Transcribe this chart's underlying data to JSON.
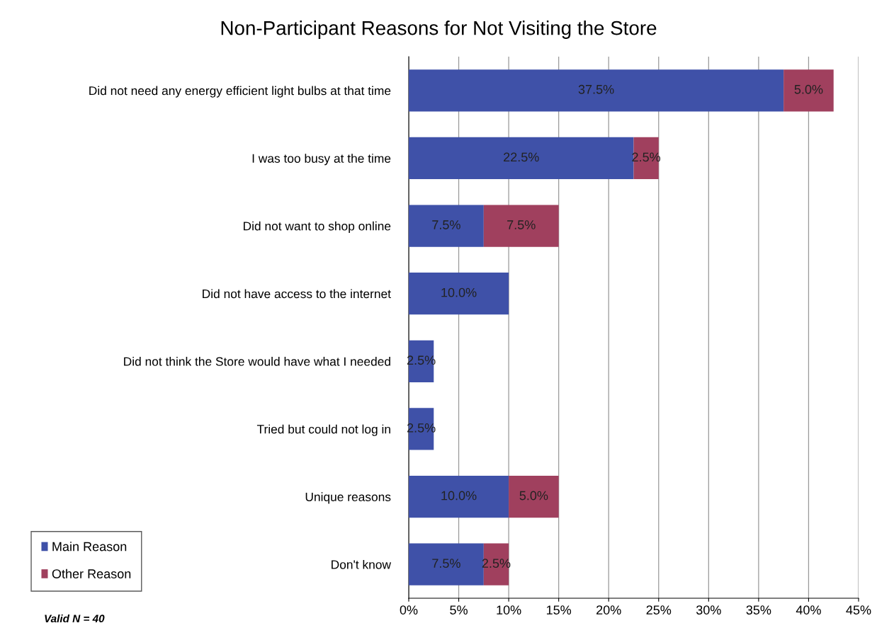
{
  "chart_data": {
    "type": "bar",
    "orientation": "horizontal",
    "stacked": true,
    "title": "Non-Participant Reasons for Not Visiting the Store",
    "categories": [
      "Did not need any energy efficient light bulbs at that time",
      "I was too busy at the time",
      "Did not want to shop online",
      "Did not have access to the internet",
      "Did not think the Store would have what I needed",
      "Tried but could not log in",
      "Unique reasons",
      "Don't know"
    ],
    "series": [
      {
        "name": "Main Reason",
        "color": "#3f51a8",
        "values": [
          37.5,
          22.5,
          7.5,
          10.0,
          2.5,
          2.5,
          10.0,
          7.5
        ],
        "value_labels": [
          "37.5%",
          "22.5%",
          "7.5%",
          "10.0%",
          "2.5%",
          "2.5%",
          "10.0%",
          "7.5%"
        ]
      },
      {
        "name": "Other Reason",
        "color": "#a0405e",
        "values": [
          5.0,
          2.5,
          7.5,
          null,
          null,
          null,
          5.0,
          2.5
        ],
        "value_labels": [
          "5.0%",
          "2.5%",
          "7.5%",
          null,
          null,
          null,
          "5.0%",
          "2.5%"
        ]
      }
    ],
    "xlim": [
      0,
      45
    ],
    "xticks": [
      {
        "value": 0,
        "label": "0%"
      },
      {
        "value": 5,
        "label": "5%"
      },
      {
        "value": 10,
        "label": "10%"
      },
      {
        "value": 15,
        "label": "15%"
      },
      {
        "value": 20,
        "label": "20%"
      },
      {
        "value": 25,
        "label": "25%"
      },
      {
        "value": 30,
        "label": "30%"
      },
      {
        "value": 35,
        "label": "35%"
      },
      {
        "value": 40,
        "label": "40%"
      },
      {
        "value": 45,
        "label": "45%"
      }
    ],
    "grid": "x",
    "legend": "bottom left",
    "annotations": [
      "Valid N = 40"
    ]
  }
}
